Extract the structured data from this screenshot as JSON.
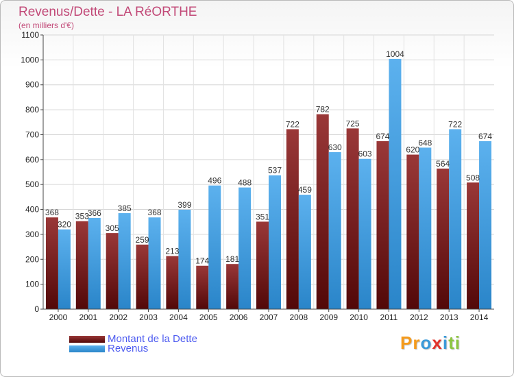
{
  "header": {
    "title": "Revenus/Dette - LA RéORTHE",
    "subtitle": "(en milliers d'€)"
  },
  "chart_data": {
    "type": "bar",
    "categories": [
      "2000",
      "2001",
      "2002",
      "2003",
      "2004",
      "2005",
      "2006",
      "2007",
      "2008",
      "2009",
      "2010",
      "2011",
      "2012",
      "2013",
      "2014"
    ],
    "series": [
      {
        "name": "Montant de la Dette",
        "values": [
          368,
          353,
          305,
          259,
          213,
          174,
          181,
          351,
          722,
          782,
          725,
          674,
          620,
          564,
          508
        ],
        "color": "#7a1a1a"
      },
      {
        "name": "Revenus",
        "values": [
          320,
          366,
          385,
          368,
          399,
          496,
          488,
          537,
          459,
          630,
          603,
          1004,
          648,
          722,
          674
        ],
        "color": "#4aa3e6"
      }
    ],
    "ylim": [
      0,
      1100
    ],
    "yticks": [
      0,
      100,
      200,
      300,
      400,
      500,
      600,
      700,
      800,
      900,
      1000,
      1100
    ],
    "grid": true
  },
  "legend": {
    "items": [
      {
        "label": "Montant de la Dette"
      },
      {
        "label": "Revenus"
      }
    ]
  },
  "logo": {
    "letters": [
      "P",
      "r",
      "o",
      "x",
      "i",
      "t",
      "i"
    ],
    "colors": [
      "#f59a1b",
      "#f59a1b",
      "#3a9ad9",
      "#e2322a",
      "#3a9ad9",
      "#8cc63f",
      "#8cc63f"
    ]
  }
}
